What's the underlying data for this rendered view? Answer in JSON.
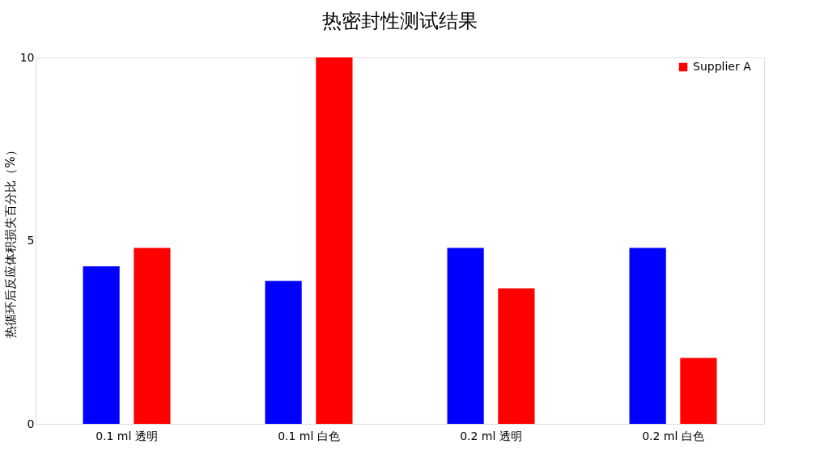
{
  "chart_data": {
    "type": "bar",
    "title": "热密封性测试结果",
    "ylabel": "热循环后反应体积损失百分比（%）",
    "categories": [
      "0.1 ml 透明",
      "0.1 ml 白色",
      "0.2 ml 透明",
      "0.2 ml 白色"
    ],
    "series": [
      {
        "color": "#0000ff",
        "values": [
          4.3,
          3.9,
          4.8,
          4.8
        ]
      },
      {
        "name": "Supplier A",
        "color": "#ff0000",
        "values": [
          4.8,
          10,
          3.7,
          1.8
        ]
      }
    ],
    "ylim": [
      0,
      10
    ],
    "yticks": [
      0,
      5,
      10
    ],
    "grid": false,
    "legend": "top right"
  }
}
